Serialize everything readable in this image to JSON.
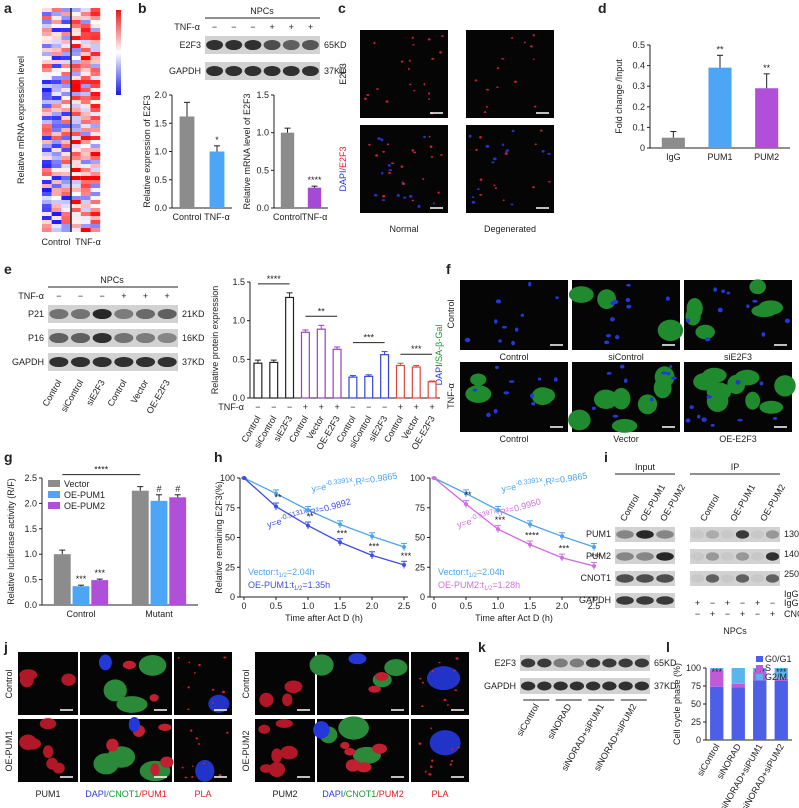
{
  "panel_labels": [
    "a",
    "b",
    "c",
    "d",
    "e",
    "f",
    "g",
    "h",
    "i",
    "j",
    "k",
    "l"
  ],
  "heatmap": {
    "ylabel": "Relative mRNA expression level",
    "columns": [
      "Control",
      "TNF-α"
    ]
  },
  "blot_b": {
    "group": "NPCs",
    "treatment": "TNF-α",
    "signs": [
      "−",
      "−",
      "−",
      "+",
      "+",
      "+"
    ],
    "bands": [
      {
        "name": "E2F3",
        "size": "65KD"
      },
      {
        "name": "GAPDH",
        "size": "37KD"
      }
    ]
  },
  "images_c": {
    "rows": [
      [
        {
          "text": "E2F3",
          "color": "#222222"
        }
      ],
      [
        {
          "text": "DAPI",
          "color": "#2a3cd0"
        },
        {
          "text": "/E2F3",
          "color": "#e02020"
        }
      ]
    ],
    "columns": [
      "Normal",
      "Degenerated"
    ]
  },
  "blot_e": {
    "group": "NPCs",
    "treatment": "TNF-α",
    "signs": [
      "−",
      "−",
      "−",
      "+",
      "+",
      "+"
    ],
    "bands": [
      {
        "name": "P21",
        "size": "21KD"
      },
      {
        "name": "P16",
        "size": "16KD"
      },
      {
        "name": "GAPDH",
        "size": "37KD"
      }
    ],
    "lanes": [
      "Control",
      "siControl",
      "siE2F3",
      "Control",
      "Vector",
      "OE-E2F3"
    ]
  },
  "images_f": {
    "ylabel": [
      {
        "text": "DAPI",
        "color": "#2a3cd0"
      },
      {
        "text": "/SA-β-Gal",
        "color": "#1a9a30"
      }
    ],
    "rows": [
      {
        "name": "Control",
        "columns": [
          "Control",
          "siControl",
          "siE2F3"
        ]
      },
      {
        "name": "TNF-α",
        "columns": [
          "Control",
          "Vector",
          "OE-E2F3"
        ]
      }
    ]
  },
  "blot_i": {
    "input": "Input",
    "ip": "IP",
    "input_lanes": [
      "Control",
      "OE-PUM1",
      "OE-PUM2"
    ],
    "ip_lanes": [
      "Control",
      "OE-PUM1",
      "OE-PUM2"
    ],
    "bands": [
      "PUM1",
      "PUM2",
      "CNOT1",
      "GAPDH"
    ],
    "sizes": [
      "130KD",
      "140KD",
      "250KD",
      "IgG"
    ],
    "ip_rows": [
      {
        "name": "IgG",
        "signs": [
          "+",
          "−",
          "+",
          "−",
          "+",
          "−"
        ]
      },
      {
        "name": "CNOT",
        "signs": [
          "−",
          "+",
          "−",
          "+",
          "−",
          "+"
        ]
      }
    ],
    "group": "NPCs"
  },
  "images_j": [
    {
      "rows": [
        "Control",
        "OE-PUM1"
      ],
      "columns": [
        [
          {
            "text": "PUM1",
            "color": "#222222"
          }
        ],
        [
          {
            "text": "DAPI",
            "color": "#2a3cd0"
          },
          {
            "text": "/CNOT1",
            "color": "#1a9a30"
          },
          {
            "text": "/PUM1",
            "color": "#e02020"
          }
        ],
        [
          {
            "text": "PLA",
            "color": "#e02020"
          }
        ]
      ]
    },
    {
      "rows": [
        "Control",
        "OE-PUM2"
      ],
      "columns": [
        [
          {
            "text": "PUM2",
            "color": "#222222"
          }
        ],
        [
          {
            "text": "DAPI",
            "color": "#2a3cd0"
          },
          {
            "text": "/CNOT1",
            "color": "#1a9a30"
          },
          {
            "text": "/PUM2",
            "color": "#e02020"
          }
        ],
        [
          {
            "text": "PLA",
            "color": "#e02020"
          }
        ]
      ]
    }
  ],
  "blot_k": {
    "bands": [
      {
        "name": "E2F3",
        "size": "65KD"
      },
      {
        "name": "GAPDH",
        "size": "37KD"
      }
    ],
    "lanes": [
      "siControl",
      "siNORAD",
      "siNORAD+siPUM1",
      "siNORAD+siPUM2"
    ]
  },
  "chart_data": [
    {
      "type": "bar",
      "ylabel": "Relative expression of E2F3",
      "categories": [
        "Control",
        "TNF-α"
      ],
      "values": [
        1.62,
        1.0
      ],
      "errors": [
        0.25,
        0.1
      ],
      "colors": [
        "#8c8c8c",
        "#4da6f5"
      ],
      "significance": [
        null,
        "*"
      ],
      "ylim": [
        0,
        2.0
      ],
      "yticks": [
        {
          "value": 0,
          "label": "0.0"
        },
        0.5,
        {
          "value": 1,
          "label": "1.0"
        },
        1.5,
        {
          "value": 2,
          "label": "2.0"
        }
      ]
    },
    {
      "type": "bar",
      "ylabel": "Relative mRNA level of E2F3",
      "categories": [
        "Control",
        "TNF-α"
      ],
      "values": [
        1.0,
        0.27
      ],
      "errors": [
        0.06,
        0.02
      ],
      "colors": [
        "#8c8c8c",
        "#a64ad6"
      ],
      "significance": [
        null,
        "****"
      ],
      "ylim": [
        0,
        1.5
      ],
      "yticks": [
        {
          "value": 0,
          "label": "0.0"
        },
        0.5,
        {
          "value": 1,
          "label": "1.0"
        },
        1.5
      ]
    },
    {
      "type": "bar",
      "ylabel": "Fold change /Input",
      "categories": [
        "IgG",
        "PUM1",
        "PUM2"
      ],
      "values": [
        0.05,
        0.39,
        0.29
      ],
      "errors": [
        0.03,
        0.06,
        0.07
      ],
      "colors": [
        "#8c8c8c",
        "#4da6f5",
        "#b04fd8"
      ],
      "significance": [
        null,
        "**",
        "**"
      ],
      "ylim": [
        0,
        0.5
      ],
      "yticks": [
        0,
        0.1,
        0.2,
        0.3,
        0.4,
        0.5
      ]
    },
    {
      "type": "bar",
      "ylabel": "Relative protein expression",
      "bar_style": "outline",
      "treatment": "TNF-α",
      "categories": [
        "Control",
        "siControl",
        "siE2F3",
        "Control",
        "Vector",
        "OE-E2F3",
        "Control",
        "siControl",
        "siE2F3",
        "Control",
        "Vector",
        "OE-E2F3"
      ],
      "signs": [
        "−",
        "−",
        "−",
        "+",
        "+",
        "+",
        "−",
        "−",
        "−",
        "+",
        "+",
        "+"
      ],
      "values": [
        0.45,
        0.46,
        1.3,
        0.85,
        0.89,
        0.63,
        0.27,
        0.28,
        0.56,
        0.42,
        0.4,
        0.21
      ],
      "errors": [
        0.04,
        0.03,
        0.06,
        0.03,
        0.05,
        0.03,
        0.02,
        0.02,
        0.04,
        0.03,
        0.02,
        0.01
      ],
      "colors": [
        "#222222",
        "#222222",
        "#222222",
        "#9b3fc0",
        "#9b3fc0",
        "#9b3fc0",
        "#3344dd",
        "#3344dd",
        "#3344dd",
        "#e0453a",
        "#e0453a",
        "#e0453a"
      ],
      "brackets": [
        "****",
        "**",
        "***",
        "***"
      ],
      "ylim": [
        0,
        1.5
      ],
      "yticks": [
        {
          "value": 0,
          "label": "0.0"
        },
        0.5,
        {
          "value": 1,
          "label": "1.0"
        },
        1.5
      ]
    },
    {
      "type": "bar",
      "ylabel": "Relative luciferase activity (R/F)",
      "categories": [
        "Control",
        "Mutant"
      ],
      "series": [
        {
          "name": "Vector",
          "color": "#8c8c8c",
          "values": [
            1.0,
            2.25
          ],
          "errors": [
            0.08,
            0.08
          ],
          "significance": [
            null,
            null
          ]
        },
        {
          "name": "OE-PUM1",
          "color": "#4da6f5",
          "values": [
            0.37,
            2.05
          ],
          "errors": [
            0.02,
            0.12
          ],
          "significance": [
            "***",
            "#"
          ]
        },
        {
          "name": "OE-PUM2",
          "color": "#b04fd8",
          "values": [
            0.49,
            2.12
          ],
          "errors": [
            0.02,
            0.05
          ],
          "significance": [
            "***",
            "#"
          ]
        }
      ],
      "bracket": "****",
      "legend": "upper left",
      "ylim": [
        0,
        2.5
      ],
      "yticks": [
        {
          "value": 0,
          "label": "0.0"
        },
        0.5,
        {
          "value": 1,
          "label": "1.0"
        },
        1.5,
        {
          "value": 2,
          "label": "2.0"
        },
        2.5
      ]
    },
    {
      "type": "line",
      "xlabel": "Time after Act D (h)",
      "ylabel": "Relative remaining E2F3(%)",
      "x": [
        0,
        0.5,
        1,
        1.5,
        2,
        2.5
      ],
      "series": [
        {
          "name": "Vector",
          "color": "#4aa3f0",
          "values": [
            100,
            87,
            73,
            61,
            51,
            42
          ],
          "errors": [
            0,
            3,
            3,
            3,
            3,
            3
          ],
          "fit": {
            "base": "y=e",
            "exp": "-0.3391x",
            "rest": ",R²=0.9865"
          },
          "half_life": {
            "text": "Vector:t",
            "sub": "1/2",
            "rest": "=2.04h"
          }
        },
        {
          "name": "OE-PUM1",
          "color": "#3f4fe0",
          "values": [
            100,
            76,
            60,
            46,
            35,
            27
          ],
          "errors": [
            0,
            3,
            3,
            3,
            3,
            3
          ],
          "significance": [
            null,
            "**",
            "**",
            "***",
            "***",
            "***"
          ],
          "fit": {
            "base": "y=e",
            "exp": "-0.5131x",
            "rest": ",R²=0.9892"
          },
          "half_life": {
            "text": "OE-PUM1:t",
            "sub": "1/2",
            "rest": "=1.35h"
          }
        }
      ],
      "xlim": [
        0,
        2.5
      ],
      "xticks": [
        0,
        0.5,
        {
          "value": 1,
          "label": "1.0"
        },
        1.5,
        {
          "value": 2,
          "label": "2.0"
        },
        2.5
      ],
      "ylim": [
        0,
        100
      ],
      "yticks": [
        0,
        25,
        50,
        75,
        100
      ]
    },
    {
      "type": "line",
      "xlabel": "Time after Act D (h)",
      "x": [
        0,
        0.5,
        1,
        1.5,
        2,
        2.5
      ],
      "series": [
        {
          "name": "Vector",
          "color": "#4aa3f0",
          "values": [
            100,
            87,
            73,
            61,
            51,
            42
          ],
          "errors": [
            0,
            3,
            3,
            3,
            3,
            3
          ],
          "fit": {
            "base": "y=e",
            "exp": "-0.3391x",
            "rest": ",R²=0.9865"
          },
          "half_life": {
            "text": "Vector:t",
            "sub": "1/2",
            "rest": "=2.04h"
          }
        },
        {
          "name": "OE-PUM2",
          "color": "#d06ee0",
          "values": [
            100,
            78,
            57,
            44,
            33,
            26
          ],
          "errors": [
            0,
            3,
            3,
            3,
            3,
            3
          ],
          "significance": [
            null,
            "**",
            "***",
            "****",
            "***",
            "***"
          ],
          "fit": {
            "base": "y=e",
            "exp": "-0.5397x",
            "rest": ",R²=0.9950"
          },
          "half_life": {
            "text": "OE-PUM2:t",
            "sub": "1/2",
            "rest": "=1.28h"
          }
        }
      ],
      "xlim": [
        0,
        2.5
      ],
      "xticks": [
        0,
        0.5,
        {
          "value": 1,
          "label": "1.0"
        },
        1.5,
        {
          "value": 2,
          "label": "2.0"
        },
        2.5
      ],
      "ylim": [
        0,
        100
      ],
      "yticks": [
        0,
        25,
        50,
        75,
        100
      ]
    },
    {
      "type": "stacked_bar",
      "ylabel": "Cell cycle phase (%)",
      "categories": [
        "siControl",
        "siNORAD",
        "siNORAD+siPUM1",
        "siNORAD+siPUM2"
      ],
      "series": [
        {
          "name": "G0/G1",
          "color": "#4d5fe6",
          "values": [
            74,
            73,
            83,
            82
          ]
        },
        {
          "name": "S",
          "color": "#c05ad8",
          "values": [
            23,
            5,
            12,
            3
          ]
        },
        {
          "name": "G2/M",
          "color": "#5ab4ee",
          "values": [
            3,
            22,
            5,
            15
          ]
        }
      ],
      "significance": [
        "***",
        null,
        "***",
        "***"
      ],
      "legend": "upper right",
      "ylim": [
        0,
        100
      ],
      "yticks": [
        0,
        25,
        50,
        75,
        100
      ]
    }
  ]
}
